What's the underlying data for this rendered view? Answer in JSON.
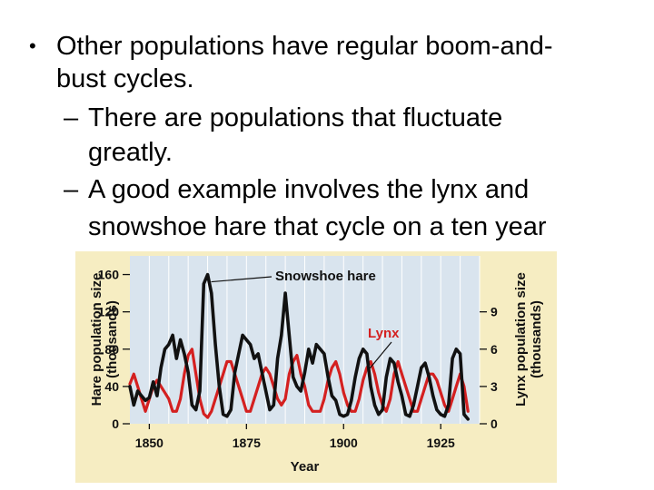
{
  "slide": {
    "bullet": "•",
    "dash": "–",
    "main_line1": "Other populations have regular boom-and-",
    "main_line2": "bust cycles.",
    "sub1_line1": "There are populations that fluctuate",
    "sub1_line2": "greatly.",
    "sub2_line1": "A good example involves the lynx and",
    "sub2_line2": "snowshoe hare that cycle on a ten year"
  },
  "colors": {
    "figure_background": "#f6edc2",
    "plot_background": "#d9e4ee",
    "hare": "#111111",
    "lynx": "#d42020",
    "lynx_label": "#d42020"
  },
  "chart_data": {
    "type": "line",
    "xlabel": "Year",
    "ylabel": "Hare population size (thousands)",
    "ylabel_line1": "Hare population size",
    "ylabel_line2": "(thousands)",
    "y2label_line1": "Lynx population size",
    "y2label_line2": "(thousands)",
    "xlim": [
      1845,
      1935
    ],
    "ylim": [
      0,
      180
    ],
    "y2lim": [
      0,
      13.5
    ],
    "xticks": [
      "1850",
      "1875",
      "1900",
      "1925"
    ],
    "yticks": [
      "0",
      "40",
      "80",
      "120",
      "160"
    ],
    "y2ticks": [
      "0",
      "3",
      "6",
      "9"
    ],
    "grid": "vertical",
    "series": [
      {
        "name": "Snowshoe hare",
        "axis": "left",
        "points": [
          [
            1845,
            40
          ],
          [
            1846,
            20
          ],
          [
            1847,
            35
          ],
          [
            1848,
            30
          ],
          [
            1849,
            25
          ],
          [
            1850,
            28
          ],
          [
            1851,
            45
          ],
          [
            1852,
            30
          ],
          [
            1853,
            60
          ],
          [
            1854,
            80
          ],
          [
            1855,
            85
          ],
          [
            1856,
            95
          ],
          [
            1857,
            70
          ],
          [
            1858,
            90
          ],
          [
            1859,
            75
          ],
          [
            1860,
            55
          ],
          [
            1861,
            20
          ],
          [
            1862,
            15
          ],
          [
            1863,
            35
          ],
          [
            1864,
            150
          ],
          [
            1865,
            160
          ],
          [
            1866,
            140
          ],
          [
            1867,
            85
          ],
          [
            1868,
            40
          ],
          [
            1869,
            10
          ],
          [
            1870,
            8
          ],
          [
            1871,
            15
          ],
          [
            1872,
            55
          ],
          [
            1873,
            75
          ],
          [
            1874,
            95
          ],
          [
            1875,
            90
          ],
          [
            1876,
            85
          ],
          [
            1877,
            70
          ],
          [
            1878,
            75
          ],
          [
            1879,
            55
          ],
          [
            1880,
            35
          ],
          [
            1881,
            15
          ],
          [
            1882,
            20
          ],
          [
            1883,
            70
          ],
          [
            1884,
            95
          ],
          [
            1885,
            140
          ],
          [
            1886,
            95
          ],
          [
            1887,
            50
          ],
          [
            1888,
            40
          ],
          [
            1889,
            35
          ],
          [
            1890,
            55
          ],
          [
            1891,
            80
          ],
          [
            1892,
            65
          ],
          [
            1893,
            85
          ],
          [
            1894,
            80
          ],
          [
            1895,
            75
          ],
          [
            1896,
            50
          ],
          [
            1897,
            30
          ],
          [
            1898,
            25
          ],
          [
            1899,
            10
          ],
          [
            1900,
            8
          ],
          [
            1901,
            10
          ],
          [
            1902,
            25
          ],
          [
            1903,
            50
          ],
          [
            1904,
            70
          ],
          [
            1905,
            80
          ],
          [
            1906,
            75
          ],
          [
            1907,
            40
          ],
          [
            1908,
            20
          ],
          [
            1909,
            10
          ],
          [
            1910,
            15
          ],
          [
            1911,
            50
          ],
          [
            1912,
            70
          ],
          [
            1913,
            65
          ],
          [
            1914,
            45
          ],
          [
            1915,
            30
          ],
          [
            1916,
            10
          ],
          [
            1917,
            8
          ],
          [
            1918,
            20
          ],
          [
            1919,
            40
          ],
          [
            1920,
            60
          ],
          [
            1921,
            65
          ],
          [
            1922,
            50
          ],
          [
            1923,
            30
          ],
          [
            1924,
            15
          ],
          [
            1925,
            10
          ],
          [
            1926,
            8
          ],
          [
            1927,
            20
          ],
          [
            1928,
            70
          ],
          [
            1929,
            80
          ],
          [
            1930,
            75
          ],
          [
            1931,
            10
          ],
          [
            1932,
            5
          ]
        ]
      },
      {
        "name": "Lynx",
        "axis": "right",
        "points": [
          [
            1845,
            3.2
          ],
          [
            1846,
            4
          ],
          [
            1847,
            3
          ],
          [
            1848,
            2
          ],
          [
            1849,
            1
          ],
          [
            1850,
            2
          ],
          [
            1851,
            3
          ],
          [
            1852,
            3.5
          ],
          [
            1853,
            3
          ],
          [
            1854,
            2.5
          ],
          [
            1855,
            2
          ],
          [
            1856,
            1
          ],
          [
            1857,
            1
          ],
          [
            1858,
            2
          ],
          [
            1859,
            4
          ],
          [
            1860,
            5.5
          ],
          [
            1861,
            6
          ],
          [
            1862,
            4
          ],
          [
            1863,
            2
          ],
          [
            1864,
            0.8
          ],
          [
            1865,
            0.5
          ],
          [
            1866,
            1
          ],
          [
            1867,
            2
          ],
          [
            1868,
            3
          ],
          [
            1869,
            4
          ],
          [
            1870,
            5
          ],
          [
            1871,
            5
          ],
          [
            1872,
            4
          ],
          [
            1873,
            3
          ],
          [
            1874,
            2
          ],
          [
            1875,
            1
          ],
          [
            1876,
            1
          ],
          [
            1877,
            2
          ],
          [
            1878,
            3
          ],
          [
            1879,
            4
          ],
          [
            1880,
            4.5
          ],
          [
            1881,
            4
          ],
          [
            1882,
            3
          ],
          [
            1883,
            2
          ],
          [
            1884,
            1.5
          ],
          [
            1885,
            2
          ],
          [
            1886,
            4
          ],
          [
            1887,
            5
          ],
          [
            1888,
            5.5
          ],
          [
            1889,
            4
          ],
          [
            1890,
            3
          ],
          [
            1891,
            1.5
          ],
          [
            1892,
            1
          ],
          [
            1893,
            1
          ],
          [
            1894,
            1
          ],
          [
            1895,
            2
          ],
          [
            1896,
            3.5
          ],
          [
            1897,
            4.5
          ],
          [
            1898,
            5
          ],
          [
            1899,
            4
          ],
          [
            1900,
            2.5
          ],
          [
            1901,
            1.5
          ],
          [
            1902,
            1
          ],
          [
            1903,
            1
          ],
          [
            1904,
            2
          ],
          [
            1905,
            3.5
          ],
          [
            1906,
            4.5
          ],
          [
            1907,
            5
          ],
          [
            1908,
            4
          ],
          [
            1909,
            2.5
          ],
          [
            1910,
            1.5
          ],
          [
            1911,
            1
          ],
          [
            1912,
            2
          ],
          [
            1913,
            4
          ],
          [
            1914,
            5
          ],
          [
            1915,
            4
          ],
          [
            1916,
            3
          ],
          [
            1917,
            2
          ],
          [
            1918,
            1
          ],
          [
            1919,
            1
          ],
          [
            1920,
            2
          ],
          [
            1921,
            3
          ],
          [
            1922,
            4
          ],
          [
            1923,
            4
          ],
          [
            1924,
            3.5
          ],
          [
            1925,
            2.5
          ],
          [
            1926,
            1.5
          ],
          [
            1927,
            1
          ],
          [
            1928,
            2
          ],
          [
            1929,
            3
          ],
          [
            1930,
            4
          ],
          [
            1931,
            3
          ],
          [
            1932,
            1
          ]
        ]
      }
    ],
    "annotations": [
      "Snowshoe hare",
      "Lynx"
    ]
  }
}
